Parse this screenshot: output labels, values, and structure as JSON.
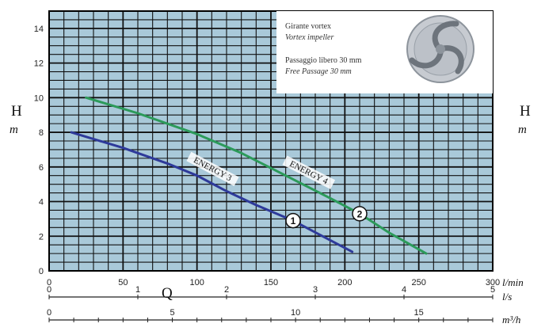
{
  "chart_data": {
    "type": "line",
    "x_unit": "l/min",
    "y_unit_letter": "H",
    "y_unit": "m",
    "x_label": "Q",
    "xlim": [
      0,
      300
    ],
    "ylim": [
      0,
      15
    ],
    "y_ticks": [
      0,
      2,
      4,
      6,
      8,
      10,
      12,
      14
    ],
    "x_ticks": [
      0,
      50,
      100,
      150,
      200,
      250,
      300
    ],
    "secondary_axes": [
      {
        "unit": "l/s",
        "ticks": [
          0,
          1,
          2,
          3,
          4,
          5
        ],
        "max": 5
      },
      {
        "unit": "m³/h",
        "ticks": [
          0,
          5,
          10,
          15
        ],
        "max": 18
      }
    ],
    "grid": true,
    "series": [
      {
        "name": "ENERGY 3",
        "marker_label": "1",
        "color": "#2e3a9a",
        "points": [
          [
            15,
            8.0
          ],
          [
            50,
            7.1
          ],
          [
            80,
            6.2
          ],
          [
            100,
            5.5
          ],
          [
            120,
            4.6
          ],
          [
            140,
            3.8
          ],
          [
            165,
            2.9
          ],
          [
            185,
            2.0
          ],
          [
            205,
            1.1
          ]
        ],
        "marker_at": [
          165,
          2.9
        ]
      },
      {
        "name": "ENERGY 4",
        "marker_label": "2",
        "color": "#2c9a5a",
        "points": [
          [
            25,
            10.0
          ],
          [
            60,
            9.1
          ],
          [
            100,
            7.9
          ],
          [
            130,
            6.8
          ],
          [
            160,
            5.5
          ],
          [
            190,
            4.2
          ],
          [
            210,
            3.3
          ],
          [
            230,
            2.2
          ],
          [
            255,
            1.0
          ]
        ],
        "marker_at": [
          210,
          3.3
        ]
      }
    ]
  },
  "info_box": {
    "line1": "Girante vortex",
    "line2": "Vortex impeller",
    "line3": "Passaggio libero 30 mm",
    "line4": "Free Passage 30 mm"
  },
  "colors": {
    "plot_bg": "#a9c9d9",
    "grid": "#111111"
  }
}
